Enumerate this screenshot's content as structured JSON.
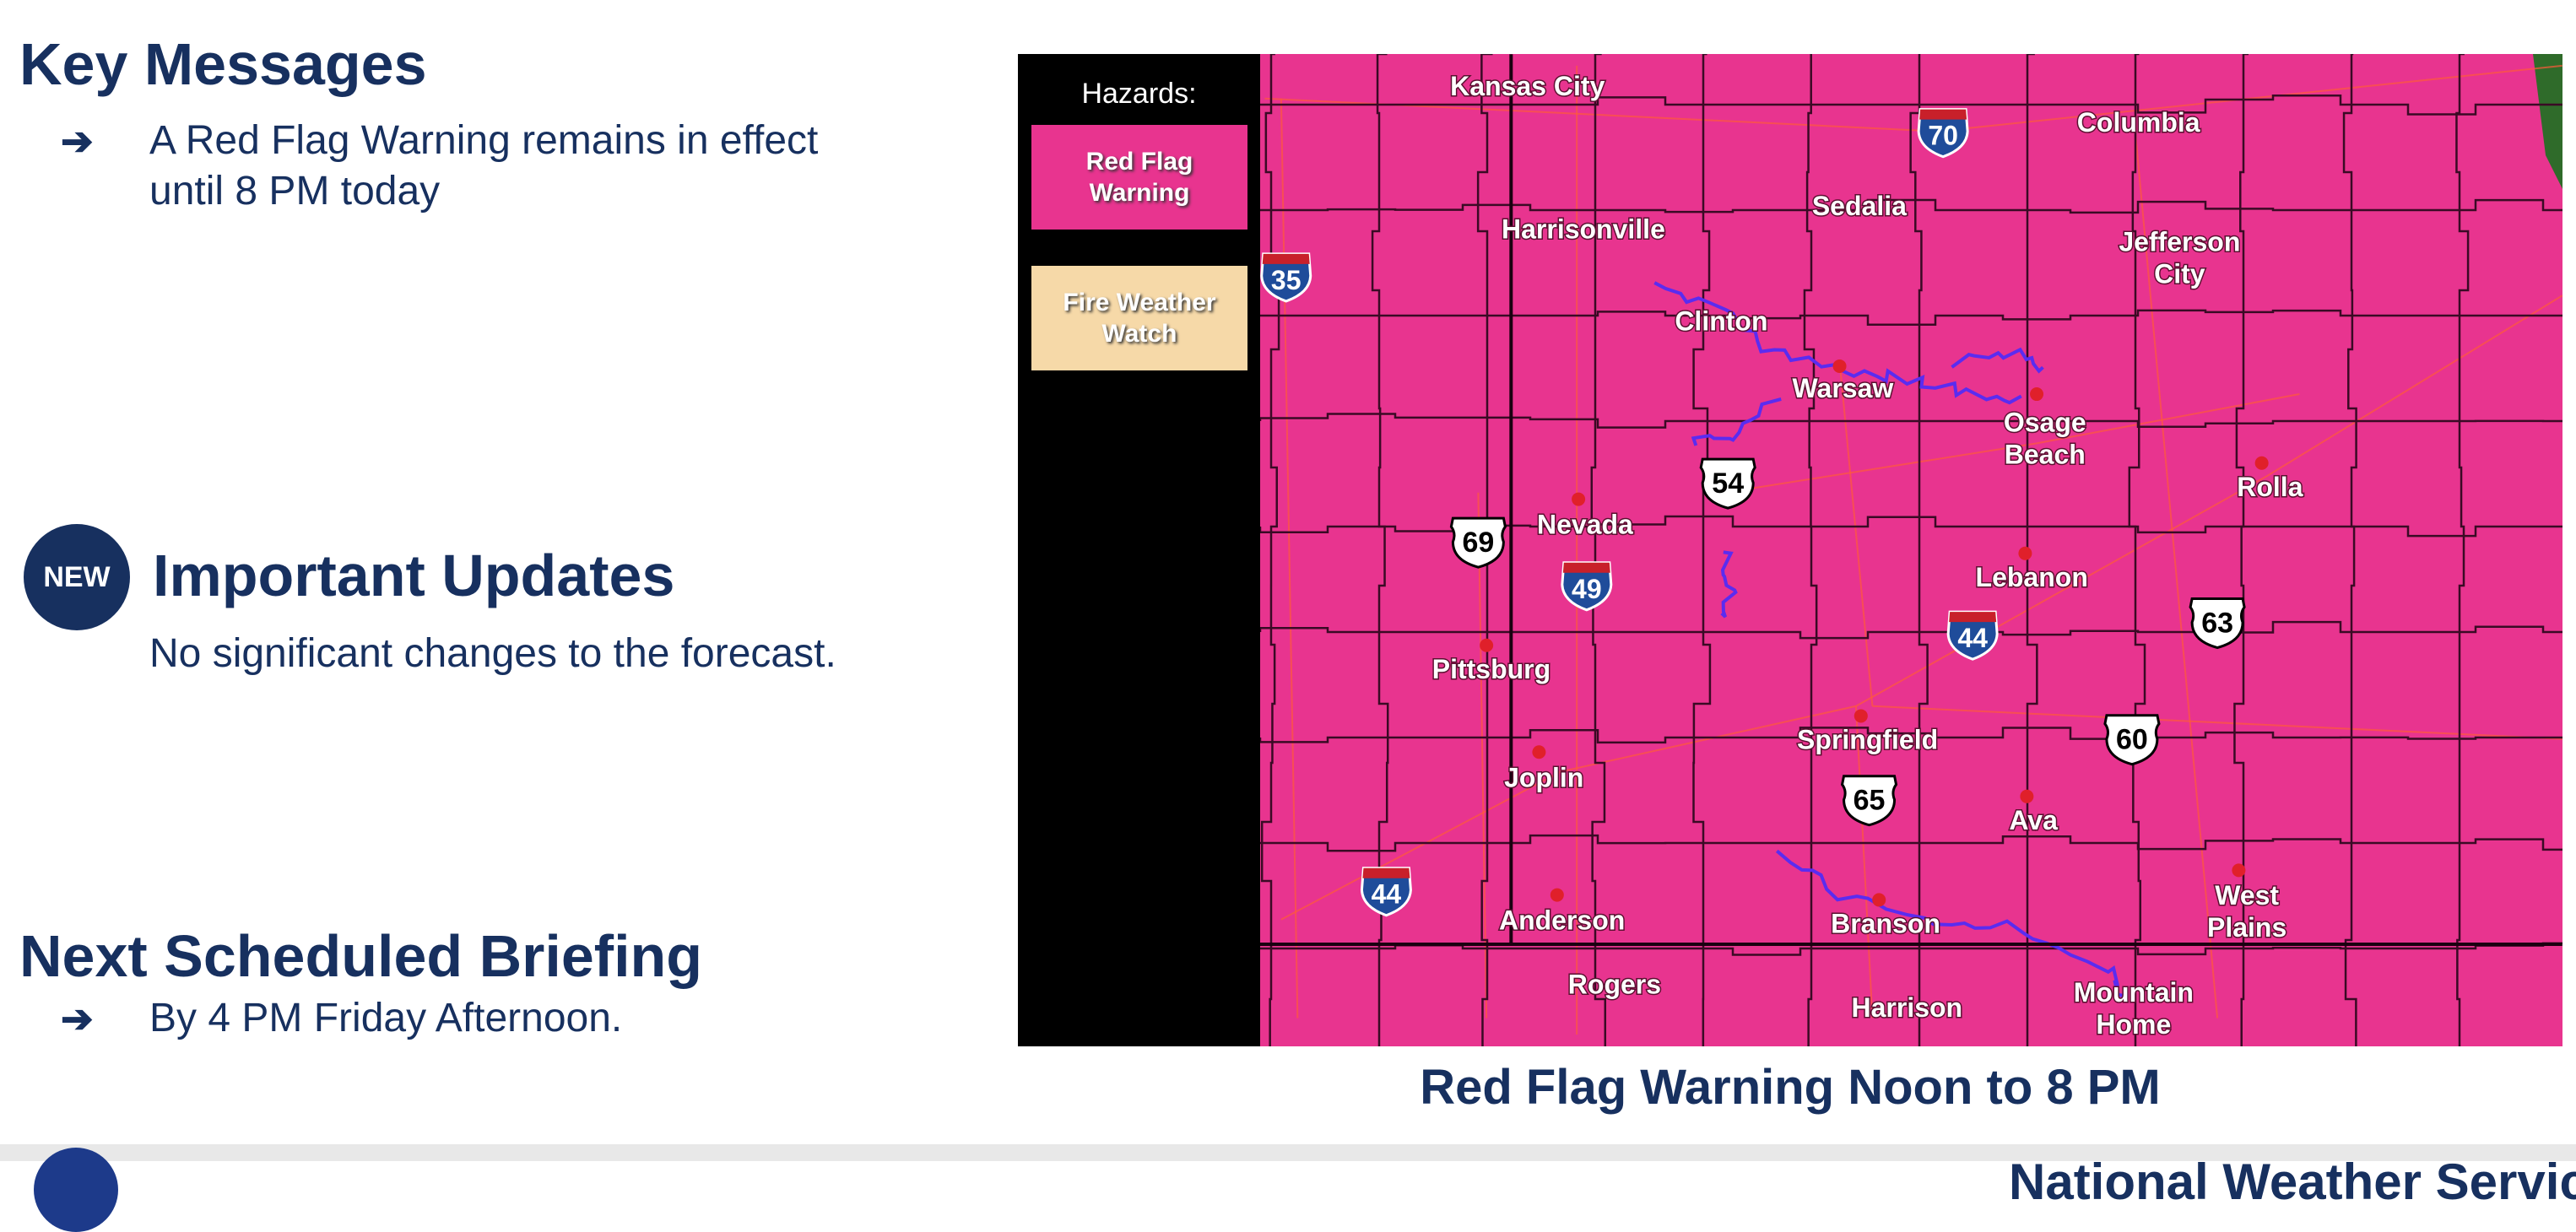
{
  "key_messages": {
    "title": "Key Messages",
    "bullet_icon": "arrow-right-icon",
    "items": [
      "A Red Flag Warning remains in effect until 8 PM today"
    ]
  },
  "important_updates": {
    "badge": "NEW",
    "title": "Important Updates",
    "text": "No significant changes to the forecast."
  },
  "next_briefing": {
    "title": "Next Scheduled Briefing",
    "text": "By 4 PM Friday Afternoon."
  },
  "map": {
    "legend": {
      "title": "Hazards:",
      "items": [
        {
          "label": "Red Flag Warning",
          "color": "#e8348f"
        },
        {
          "label": "Fire Weather Watch",
          "color": "#f6d9a8"
        }
      ]
    },
    "cities": [
      "Kansas City",
      "Columbia",
      "Sedalia",
      "Harrisonville",
      "Jefferson City",
      "Clinton",
      "Warsaw",
      "Osage Beach",
      "Rolla",
      "Nevada",
      "Lebanon",
      "Pittsburg",
      "Springfield",
      "Joplin",
      "Ava",
      "West Plains",
      "Anderson",
      "Branson",
      "Rogers",
      "Harrison",
      "Mountain Home"
    ],
    "highways": [
      {
        "type": "interstate",
        "number": "70"
      },
      {
        "type": "interstate",
        "number": "35"
      },
      {
        "type": "us",
        "number": "54"
      },
      {
        "type": "us",
        "number": "69"
      },
      {
        "type": "interstate",
        "number": "49"
      },
      {
        "type": "interstate",
        "number": "44"
      },
      {
        "type": "us",
        "number": "63"
      },
      {
        "type": "us",
        "number": "60"
      },
      {
        "type": "us",
        "number": "65"
      },
      {
        "type": "interstate",
        "number": "44"
      }
    ],
    "caption": "Red Flag Warning Noon to 8 PM"
  },
  "footer": {
    "org": "National Weather Service"
  },
  "colors": {
    "navy": "#17305f",
    "warning_pink": "#e8348f",
    "watch_tan": "#f6d9a8",
    "lake_blue": "#5a2cf0"
  }
}
